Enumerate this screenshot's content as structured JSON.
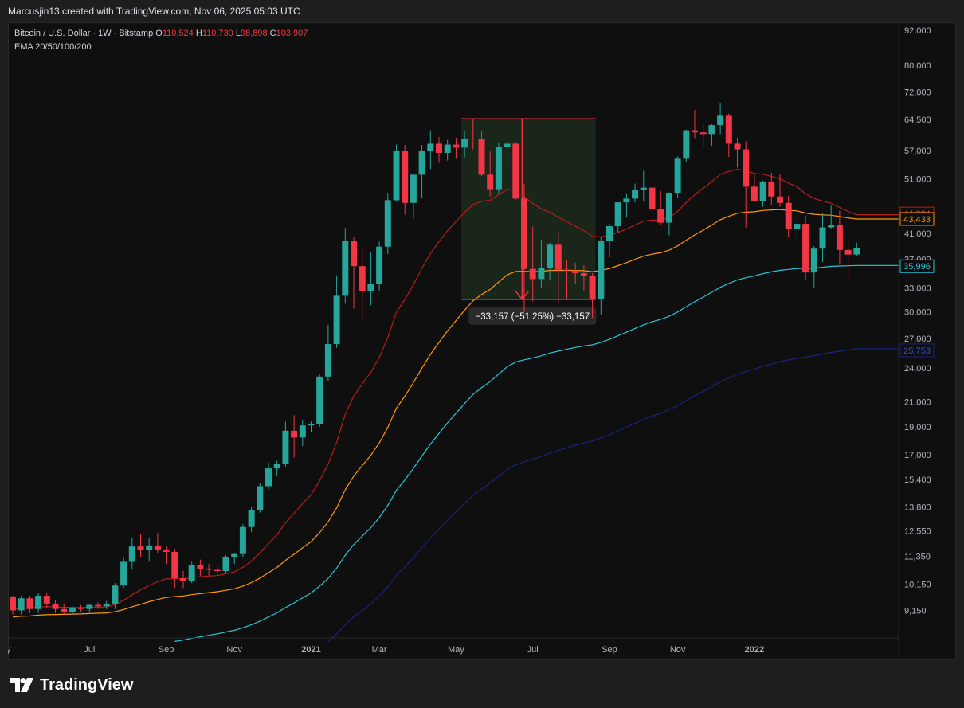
{
  "header": {
    "attribution": "Marcusjin13 created with TradingView.com, Nov 06, 2025 05:03 UTC"
  },
  "legend": {
    "symbol": "Bitcoin / U.S. Dollar · 1W · Bitstamp",
    "o_label": "O",
    "o_value": "110,524",
    "h_label": "H",
    "h_value": "110,730",
    "l_label": "L",
    "l_value": "98,898",
    "c_label": "C",
    "c_value": "103,907",
    "indicator": "EMA 20/50/100/200"
  },
  "footer": {
    "brand": "TradingView"
  },
  "measure_label": "−33,157 (−51.25%) −33,157",
  "colors": {
    "up": "#26a69a",
    "down": "#f23645",
    "ema20": "#b71c1c",
    "ema50": "#ff9800",
    "ema100": "#26c6da",
    "ema200": "#1a237e",
    "measure_fill": "#1c2a1c",
    "measure_line": "#f23645"
  },
  "chart_data": {
    "type": "candlestick",
    "title": "Bitcoin / U.S. Dollar · 1W · Bitstamp",
    "scale": "log",
    "ylim": [
      8200,
      95000
    ],
    "y_ticks": [
      9150,
      10150,
      11350,
      12550,
      13800,
      15400,
      17000,
      19000,
      21000,
      24000,
      27000,
      30000,
      33000,
      37000,
      41000,
      51000,
      57000,
      64500,
      72000,
      80000,
      92000
    ],
    "y_tick_labels": [
      "9,150",
      "10,150",
      "11,350",
      "12,550",
      "13,800",
      "15,400",
      "17,000",
      "19,000",
      "21,000",
      "24,000",
      "27,000",
      "30,000",
      "33,000",
      "37,000",
      "41,000",
      "51,000",
      "57,000",
      "64,500",
      "72,000",
      "80,000",
      "92,000"
    ],
    "x_tick_labels": [
      "y",
      "Jul",
      "Sep",
      "Nov",
      "2021",
      "Mar",
      "May",
      "Jul",
      "Sep",
      "Nov",
      "2022"
    ],
    "x_tick_weeks": [
      0,
      9,
      18,
      26,
      35,
      43,
      52,
      61,
      70,
      78,
      87
    ],
    "candles": [
      [
        9650,
        9700,
        9000,
        9150
      ],
      [
        9150,
        9700,
        9000,
        9600
      ],
      [
        9600,
        9700,
        9050,
        9200
      ],
      [
        9200,
        9800,
        9050,
        9700
      ],
      [
        9700,
        9800,
        9250,
        9400
      ],
      [
        9400,
        9550,
        9050,
        9200
      ],
      [
        9200,
        9400,
        9000,
        9100
      ],
      [
        9100,
        9300,
        9000,
        9250
      ],
      [
        9250,
        9350,
        9100,
        9200
      ],
      [
        9200,
        9400,
        9100,
        9350
      ],
      [
        9350,
        9450,
        9200,
        9300
      ],
      [
        9300,
        9500,
        9200,
        9400
      ],
      [
        9400,
        10200,
        9200,
        10100
      ],
      [
        10100,
        11300,
        10000,
        11100
      ],
      [
        11100,
        12200,
        10800,
        11800
      ],
      [
        11800,
        12400,
        11300,
        11650
      ],
      [
        11650,
        12200,
        11100,
        11850
      ],
      [
        11850,
        12450,
        11500,
        11650
      ],
      [
        11650,
        11800,
        11000,
        11550
      ],
      [
        11550,
        11700,
        10000,
        10400
      ],
      [
        10400,
        10700,
        10000,
        10300
      ],
      [
        10300,
        11100,
        10200,
        10950
      ],
      [
        10950,
        11200,
        10500,
        10800
      ],
      [
        10800,
        11000,
        10500,
        10750
      ],
      [
        10750,
        10900,
        10500,
        10700
      ],
      [
        10700,
        11400,
        10600,
        11300
      ],
      [
        11300,
        11500,
        11000,
        11450
      ],
      [
        11450,
        12900,
        11300,
        12750
      ],
      [
        12750,
        13800,
        12500,
        13650
      ],
      [
        13650,
        15200,
        13500,
        15000
      ],
      [
        15000,
        16500,
        14800,
        16100
      ],
      [
        16100,
        16600,
        15600,
        16400
      ],
      [
        16400,
        19400,
        16200,
        18700
      ],
      [
        18700,
        19900,
        16800,
        18200
      ],
      [
        18200,
        19500,
        17600,
        19100
      ],
      [
        19100,
        19400,
        18600,
        19200
      ],
      [
        19200,
        23400,
        19000,
        23200
      ],
      [
        23200,
        28500,
        22800,
        26400
      ],
      [
        26400,
        34700,
        26000,
        32000
      ],
      [
        32000,
        41900,
        31000,
        39800
      ],
      [
        39800,
        40500,
        30400,
        36000
      ],
      [
        36000,
        38900,
        29000,
        32600
      ],
      [
        32600,
        38000,
        30800,
        33500
      ],
      [
        33500,
        39700,
        32600,
        38900
      ],
      [
        38900,
        48200,
        37800,
        46800
      ],
      [
        46800,
        58400,
        46500,
        57000
      ],
      [
        57000,
        58300,
        44200,
        46300
      ],
      [
        46300,
        52000,
        43500,
        51800
      ],
      [
        51800,
        58300,
        47200,
        57000
      ],
      [
        57000,
        61800,
        53000,
        58600
      ],
      [
        58600,
        60200,
        54300,
        56500
      ],
      [
        56500,
        59500,
        54800,
        58400
      ],
      [
        58400,
        60000,
        55200,
        57700
      ],
      [
        57700,
        61600,
        55500,
        59800
      ],
      [
        59800,
        64800,
        57300,
        59700
      ],
      [
        59700,
        61500,
        51500,
        51800
      ],
      [
        51800,
        56800,
        47500,
        48900
      ],
      [
        48900,
        58700,
        48000,
        57800
      ],
      [
        57800,
        59500,
        53400,
        58600
      ],
      [
        58600,
        59000,
        46900,
        47100
      ],
      [
        47100,
        49900,
        30000,
        35600
      ],
      [
        35600,
        42100,
        31300,
        34200
      ],
      [
        34200,
        40000,
        33000,
        35700
      ],
      [
        35700,
        39500,
        34000,
        39200
      ],
      [
        39200,
        41300,
        31000,
        35500
      ],
      [
        35500,
        36800,
        31600,
        35400
      ],
      [
        35400,
        36500,
        33600,
        35000
      ],
      [
        35000,
        36100,
        32700,
        34600
      ],
      [
        34600,
        35000,
        29300,
        31600
      ],
      [
        31600,
        40500,
        29700,
        39800
      ],
      [
        39800,
        42600,
        37300,
        42200
      ],
      [
        42200,
        46200,
        41200,
        46400
      ],
      [
        46400,
        48100,
        43800,
        47100
      ],
      [
        47100,
        50000,
        46400,
        48800
      ],
      [
        48800,
        52600,
        46600,
        49200
      ],
      [
        49200,
        49900,
        42800,
        45100
      ],
      [
        45100,
        48600,
        42400,
        42800
      ],
      [
        42800,
        48300,
        40700,
        48200
      ],
      [
        48200,
        55700,
        47300,
        55200
      ],
      [
        55200,
        62000,
        54500,
        61800
      ],
      [
        61800,
        67000,
        59900,
        61300
      ],
      [
        61300,
        63700,
        58000,
        60900
      ],
      [
        60900,
        63300,
        58100,
        63100
      ],
      [
        63100,
        69000,
        60900,
        65500
      ],
      [
        65500,
        66100,
        55600,
        58600
      ],
      [
        58600,
        60000,
        53300,
        57300
      ],
      [
        57300,
        59200,
        42000,
        49400
      ],
      [
        49400,
        51900,
        46700,
        46700
      ],
      [
        46700,
        50600,
        45600,
        50400
      ],
      [
        50400,
        52200,
        45900,
        47500
      ],
      [
        47500,
        51900,
        45600,
        46300
      ],
      [
        46300,
        47600,
        40500,
        41800
      ],
      [
        41800,
        43500,
        39700,
        42600
      ],
      [
        42600,
        44000,
        34000,
        35100
      ],
      [
        35100,
        39000,
        33000,
        38600
      ],
      [
        38600,
        44500,
        36600,
        42000
      ],
      [
        42000,
        45800,
        41700,
        42400
      ],
      [
        42400,
        44900,
        36200,
        38400
      ],
      [
        38400,
        40400,
        34300,
        37700
      ],
      [
        37700,
        39500,
        37400,
        38700
      ]
    ],
    "series": [
      {
        "name": "EMA 20",
        "last_value": 44384,
        "label": "44,384"
      },
      {
        "name": "EMA 50",
        "last_value": 43433,
        "label": "43,433"
      },
      {
        "name": "EMA 100",
        "last_value": 35996,
        "label": "35,996"
      },
      {
        "name": "EMA 200",
        "last_value": 25753,
        "label": "25,753"
      }
    ],
    "ema_start": {
      "EMA 20": 9200,
      "EMA 50": 8900,
      "EMA 100": 7050,
      "EMA 200": 5850
    },
    "measurement": {
      "from_week": 53,
      "to_week": 68,
      "price_from": 64700,
      "price_to": 31550,
      "change": -33157,
      "change_pct": -51.25
    }
  }
}
